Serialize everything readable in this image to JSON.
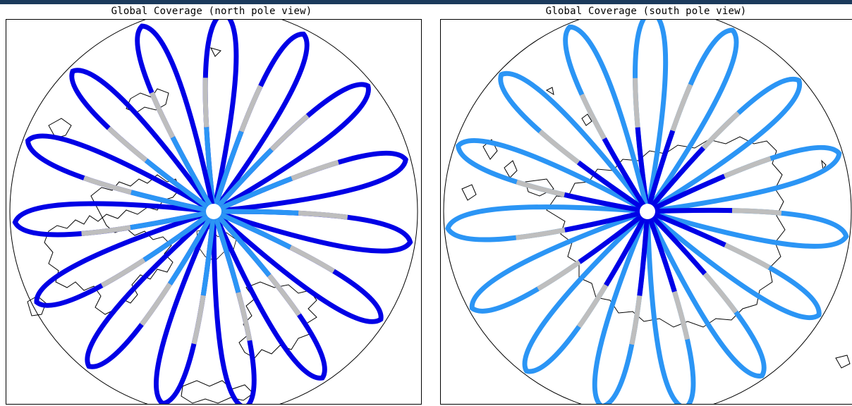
{
  "panels": [
    {
      "title": "Global Coverage (north pole view)",
      "view": "north-pole",
      "track_colors": {
        "segment_dark": "#0000e6",
        "segment_light": "#2b95f5",
        "segment_gray": "#bebebe"
      },
      "dominant_near_pole": "light"
    },
    {
      "title": "Global Coverage (south pole view)",
      "view": "south-pole",
      "track_colors": {
        "segment_dark": "#0000e6",
        "segment_light": "#2b95f5",
        "segment_gray": "#bebebe"
      },
      "dominant_near_pole": "dark"
    }
  ],
  "colors": {
    "coastline": "#000000",
    "background": "#ffffff",
    "header_bar": "#1b3a5c"
  }
}
